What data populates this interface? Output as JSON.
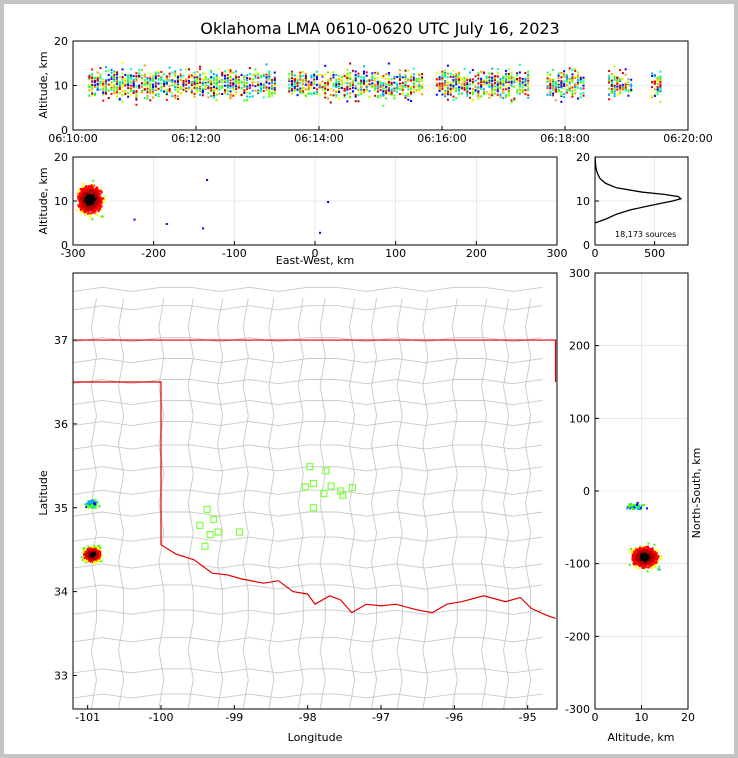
{
  "title": "Oklahoma LMA 0610-0620 UTC July 16, 2023",
  "chart_data": [
    {
      "id": "time_height",
      "type": "scatter",
      "ylabel": "Altitude, km",
      "x_ticks": [
        "06:10:00",
        "06:12:00",
        "06:14:00",
        "06:16:00",
        "06:18:00",
        "06:20:00"
      ],
      "xlim_minutes": [
        0,
        10
      ],
      "ylim": [
        0,
        20
      ],
      "y_ticks": [
        0,
        10,
        20
      ],
      "active_periods_minutes": [
        [
          0.25,
          3.3
        ],
        [
          3.5,
          5.7
        ],
        [
          5.9,
          7.4
        ],
        [
          7.7,
          8.3
        ],
        [
          8.7,
          9.1
        ],
        [
          9.4,
          9.55
        ]
      ],
      "altitude_center_km": 10.5
    },
    {
      "id": "ew_height",
      "type": "scatter",
      "xlabel": "East-West, km",
      "ylabel": "Altitude, km",
      "xlim": [
        -300,
        300
      ],
      "x_ticks": [
        -300,
        -200,
        -100,
        0,
        100,
        200,
        300
      ],
      "ylim": [
        0,
        20
      ],
      "y_ticks": [
        0,
        10,
        20
      ],
      "cluster": {
        "x_km": -280,
        "alt_km": 10.5
      }
    },
    {
      "id": "altitude_histogram",
      "type": "line",
      "annotation": "18,173 sources",
      "xlim": [
        0,
        780
      ],
      "x_ticks": [
        0,
        500
      ],
      "ylim": [
        0,
        20
      ],
      "y_ticks": [
        0,
        10,
        20
      ],
      "profile": [
        [
          5,
          0
        ],
        [
          6,
          100
        ],
        [
          7,
          180
        ],
        [
          8,
          300
        ],
        [
          9,
          470
        ],
        [
          10,
          650
        ],
        [
          10.5,
          720
        ],
        [
          11,
          700
        ],
        [
          11.5,
          580
        ],
        [
          12,
          400
        ],
        [
          13,
          180
        ],
        [
          14,
          90
        ],
        [
          15,
          45
        ],
        [
          16,
          25
        ],
        [
          17,
          12
        ],
        [
          18,
          6
        ],
        [
          19,
          3
        ],
        [
          20,
          1
        ]
      ]
    },
    {
      "id": "plan_view",
      "type": "scatter",
      "xlabel": "Longitude",
      "ylabel": "Latitude",
      "xlim": [
        -101.2,
        -94.6
      ],
      "ylim": [
        32.6,
        37.8
      ],
      "x_ticks": [
        -101,
        -100,
        -99,
        -98,
        -97,
        -96,
        -95
      ],
      "y_ticks": [
        33,
        34,
        35,
        36,
        37
      ],
      "cluster": {
        "lon": -100.95,
        "lat": 34.45
      },
      "stations": [
        [
          -97.97,
          35.49
        ],
        [
          -97.75,
          35.44
        ],
        [
          -97.92,
          35.29
        ],
        [
          -97.68,
          35.26
        ],
        [
          -97.55,
          35.2
        ],
        [
          -97.39,
          35.24
        ],
        [
          -98.03,
          35.25
        ],
        [
          -97.78,
          35.17
        ],
        [
          -97.52,
          35.15
        ],
        [
          -97.92,
          35.0
        ],
        [
          -99.37,
          34.98
        ],
        [
          -99.28,
          34.86
        ],
        [
          -99.47,
          34.79
        ],
        [
          -99.22,
          34.71
        ],
        [
          -98.93,
          34.71
        ],
        [
          -99.4,
          34.54
        ],
        [
          -99.33,
          34.68
        ]
      ]
    },
    {
      "id": "ns_height",
      "type": "scatter",
      "xlabel": "Altitude, km",
      "ylabel": "North-South, km",
      "xlim": [
        0,
        20
      ],
      "x_ticks": [
        0,
        10,
        20
      ],
      "ylim": [
        -300,
        300
      ],
      "y_ticks": [
        -300,
        -200,
        -100,
        0,
        100,
        200,
        300
      ],
      "cluster": {
        "alt_km": 10.5,
        "ns_km": -90
      }
    }
  ]
}
